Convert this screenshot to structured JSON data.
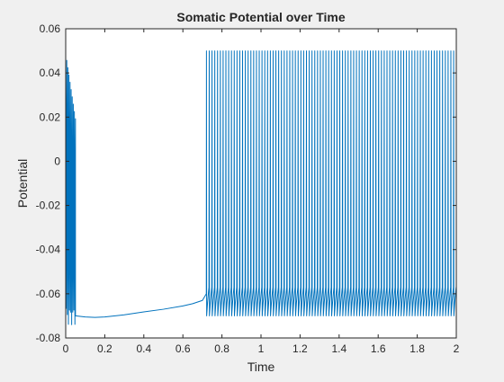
{
  "chart_data": {
    "type": "line",
    "title": "Somatic Potential over Time",
    "xlabel": "Time",
    "ylabel": "Potential",
    "xlim": [
      0,
      2
    ],
    "ylim": [
      -0.08,
      0.06
    ],
    "x_ticks": [
      "0",
      "0.2",
      "0.4",
      "0.6",
      "0.8",
      "1",
      "1.2",
      "1.4",
      "1.6",
      "1.8",
      "2"
    ],
    "y_ticks": [
      "0.06",
      "0.04",
      "0.02",
      "0",
      "-0.02",
      "-0.04",
      "-0.06",
      "-0.08"
    ],
    "grid": false,
    "legend": "none",
    "line_color": "#0072BD",
    "series": [
      {
        "initial_burst": {
          "x_start": 0.0,
          "x_end": 0.05,
          "y_min": -0.07,
          "y_max": 0.049
        },
        "slow_recovery": {
          "x": [
            0.05,
            0.1,
            0.15,
            0.2,
            0.3,
            0.4,
            0.5,
            0.6,
            0.65,
            0.7,
            0.72
          ],
          "y": [
            -0.07,
            -0.0705,
            -0.0707,
            -0.0705,
            -0.0695,
            -0.0682,
            -0.067,
            -0.0655,
            -0.0645,
            -0.063,
            -0.06
          ]
        },
        "spike_train": {
          "x_start": 0.72,
          "x_end": 2.0,
          "spike_count": 90,
          "peak": 0.05,
          "trough": -0.07,
          "baseline": -0.06
        }
      }
    ]
  }
}
